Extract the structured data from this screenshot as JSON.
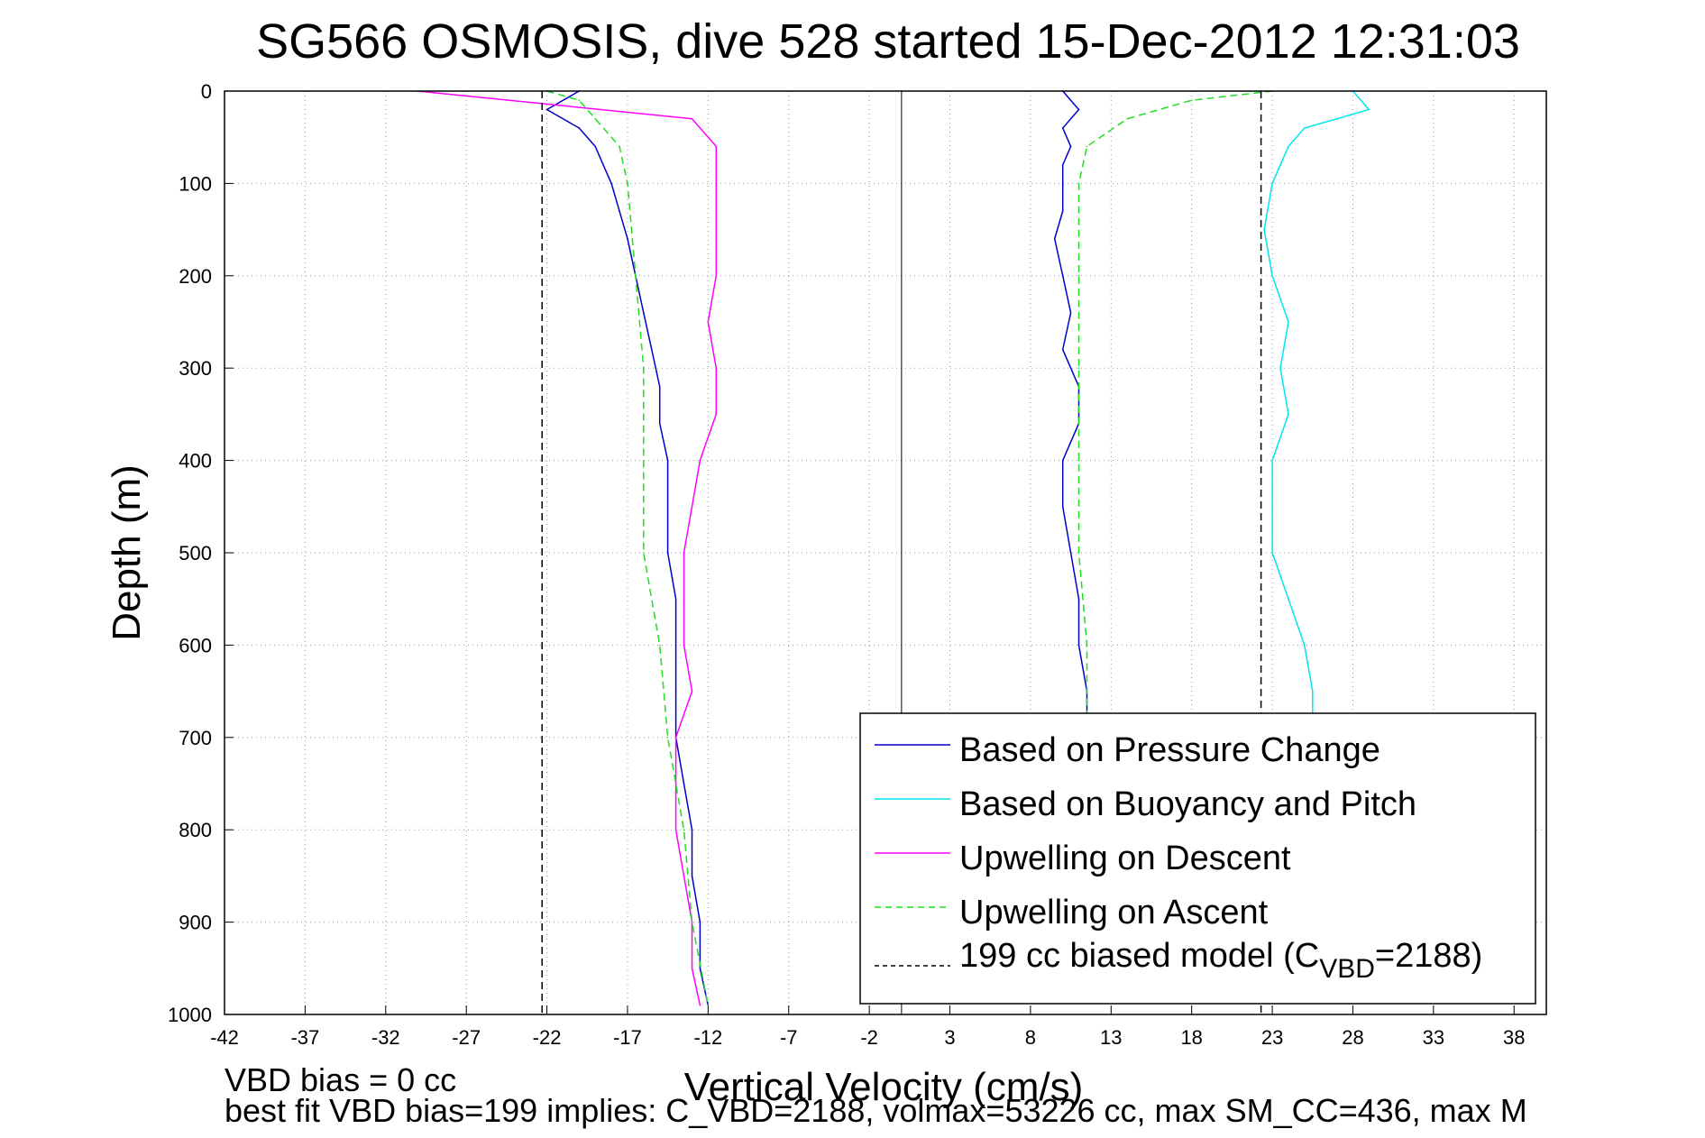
{
  "chart_data": {
    "type": "line",
    "title": "SG566 OSMOSIS, dive 528 started 15-Dec-2012 12:31:03",
    "xlabel": "Vertical Velocity (cm/s)",
    "ylabel": "Depth (m)",
    "xlim": [
      -42,
      40
    ],
    "ylim": [
      0,
      1000
    ],
    "y_reversed": true,
    "grid": true,
    "legend_position": "bottom-right",
    "x_ticks": [
      -42,
      -37,
      -32,
      -27,
      -22,
      -17,
      -12,
      -7,
      -2,
      3,
      8,
      13,
      18,
      23,
      28,
      33,
      38
    ],
    "y_ticks": [
      0,
      100,
      200,
      300,
      400,
      500,
      600,
      700,
      800,
      900,
      1000
    ],
    "zero_line_x": 0,
    "series": [
      {
        "name": "Based on Pressure Change",
        "color": "#0000cc",
        "style": "solid",
        "segments": [
          {
            "depth": [
              0,
              20,
              40,
              60,
              80,
              100,
              130,
              160,
              200,
              240,
              280,
              320,
              360,
              400,
              450,
              500,
              550,
              600,
              650,
              700,
              750,
              800,
              850,
              900,
              950,
              990
            ],
            "velocity": [
              -20,
              -22,
              -20,
              -19,
              -18.5,
              -18,
              -17.5,
              -17,
              -16.5,
              -16,
              -15.5,
              -15,
              -15,
              -14.5,
              -14.5,
              -14.5,
              -14,
              -14,
              -14,
              -14,
              -13.5,
              -13,
              -13,
              -12.5,
              -12.5,
              -12
            ]
          },
          {
            "depth": [
              0,
              20,
              40,
              60,
              80,
              100,
              130,
              160,
              200,
              240,
              280,
              320,
              360,
              400,
              450,
              500,
              550,
              600,
              650,
              680
            ],
            "velocity": [
              10,
              11,
              10,
              10.5,
              10,
              10,
              10,
              9.5,
              10,
              10.5,
              10,
              11,
              11,
              10,
              10,
              10.5,
              11,
              11,
              11.5,
              11.5
            ]
          }
        ]
      },
      {
        "name": "Based on Buoyancy and Pitch",
        "color": "#00e5ee",
        "style": "solid",
        "segments": [
          {
            "depth": [
              0,
              20,
              40,
              60,
              80,
              100,
              150,
              200,
              250,
              300,
              350,
              400,
              450,
              500,
              550,
              600,
              650,
              680
            ],
            "velocity": [
              28,
              29,
              25,
              24,
              23.5,
              23,
              22.5,
              23,
              24,
              23.5,
              24,
              23,
              23,
              23,
              24,
              25,
              25.5,
              25.5
            ]
          }
        ]
      },
      {
        "name": "Upwelling on Descent",
        "color": "#ff00ff",
        "style": "solid",
        "segments": [
          {
            "depth": [
              0,
              30,
              60,
              100,
              150,
              200,
              250,
              300,
              350,
              400,
              450,
              500,
              550,
              600,
              650,
              700,
              750,
              800,
              850,
              900,
              950,
              990
            ],
            "velocity": [
              -30,
              -13,
              -11.5,
              -11.5,
              -11.5,
              -11.5,
              -12,
              -11.5,
              -11.5,
              -12.5,
              -13,
              -13.5,
              -13.5,
              -13.5,
              -13,
              -14,
              -14,
              -14,
              -13.5,
              -13,
              -13,
              -12.5
            ]
          }
        ]
      },
      {
        "name": "Upwelling on Ascent",
        "color": "#22dd22",
        "style": "dashed",
        "segments": [
          {
            "depth": [
              0,
              10,
              30,
              60,
              100,
              200,
              300,
              400,
              500,
              600,
              700,
              800,
              900,
              990
            ],
            "velocity": [
              -22,
              -20,
              -19,
              -17.5,
              -17,
              -16.5,
              -16,
              -16,
              -16,
              -15,
              -14.5,
              -13.5,
              -13,
              -12
            ]
          },
          {
            "depth": [
              0,
              10,
              30,
              60,
              100,
              200,
              300,
              400,
              500,
              600,
              680
            ],
            "velocity": [
              23,
              18,
              14,
              11.5,
              11,
              11,
              11,
              11,
              11,
              11.5,
              11.5
            ]
          }
        ]
      },
      {
        "name": "199 cc biased model (C_VBD=2188)",
        "color": "#000000",
        "style": "dashed",
        "segments": [
          {
            "depth": [
              0,
              1000
            ],
            "velocity": [
              -22.3,
              -22.3
            ]
          },
          {
            "depth": [
              0,
              1000
            ],
            "velocity": [
              22.3,
              22.3
            ]
          }
        ]
      }
    ],
    "legend": {
      "series0": "Based on Pressure Change",
      "series1": "Based on Buoyancy and Pitch",
      "series2": "Upwelling on Descent",
      "series3": "Upwelling on Ascent",
      "series4_prefix": "199 cc biased model (C",
      "series4_sub": "VBD",
      "series4_suffix": "=2188)"
    },
    "footer": {
      "line1": "VBD bias = 0 cc",
      "line2": "best fit VBD bias=199 implies: C_VBD=2188, volmax=53226 cc, max SM_CC=436, max M"
    }
  }
}
